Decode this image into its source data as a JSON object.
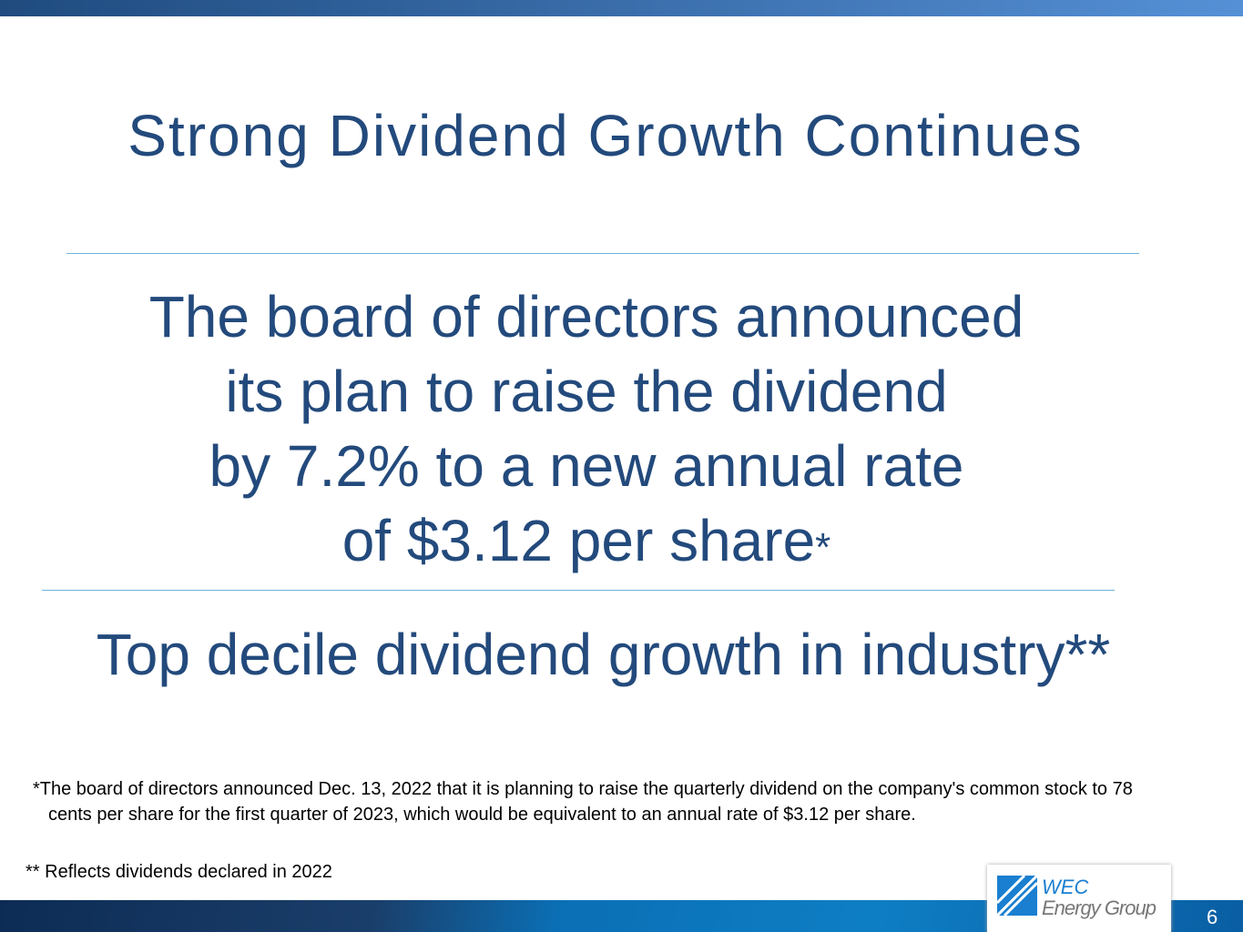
{
  "title": "Strong Dividend Growth Continues",
  "headline": {
    "lines": [
      "The board of directors announced",
      "its plan to raise the dividend",
      "by 7.2% to a new annual rate",
      "of $3.12 per share"
    ],
    "marker": "*"
  },
  "subhead": "Top decile dividend growth in industry**",
  "footnotes": [
    "*The board of directors announced Dec. 13, 2022 that it is planning to raise the quarterly dividend on the company's common stock to 78 cents per share for the first quarter of 2023, which would be equivalent to an annual rate of $3.12 per share.",
    "** Reflects dividends declared in 2022"
  ],
  "logo": {
    "line1": "WEC",
    "line2": "Energy Group"
  },
  "page_number": "6"
}
